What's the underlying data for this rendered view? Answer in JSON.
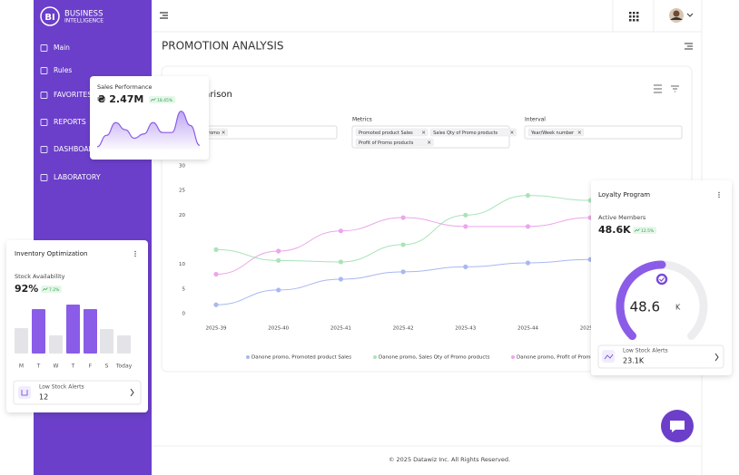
{
  "sidebar": {
    "logo": "BI",
    "brand_line1": "BUSINESS",
    "brand_line2": "INTELLIGENCE",
    "menu": [
      "Main",
      "Rules",
      "FAVORITES",
      "REPORTS",
      "DASHBOARD",
      "LABORATORY"
    ]
  },
  "page_title": "PROMOTION ANALYSIS",
  "comparison": {
    "title": "Comparison",
    "filters": [
      {
        "chips": [
          "Danone promo"
        ]
      },
      {
        "label": "Metrics",
        "chips": [
          "Promoted product Sales",
          "Sales Qty of Promo products",
          "Profit of Promo products"
        ]
      },
      {
        "label": "Interval",
        "chips": [
          "Year/Week number"
        ]
      }
    ]
  },
  "sales_card": {
    "title": "Sales Performance",
    "value": "₴ 2.47M",
    "badge": "18.45%"
  },
  "inventory_card": {
    "title": "Inventory Optimization",
    "subtitle": "Stock Availability",
    "value": "92%",
    "badge": "7.2%",
    "alert_label": "Low Stock Alerts",
    "alert_value": "12"
  },
  "loyalty_card": {
    "title": "Loyalty Program",
    "subtitle": "Active Members",
    "value": "48.6K",
    "badge": "12.5%",
    "gauge_value": "48.6",
    "gauge_unit": "K",
    "alert_label": "Low Stock Alerts",
    "alert_value": "23.1K"
  },
  "footer": "© 2025 Datawiz Inc. All Rights Reserved.",
  "chart_data": [
    {
      "type": "line",
      "categories": [
        "2025-39",
        "2025-40",
        "2025-41",
        "2025-42",
        "2025-43",
        "2025-44",
        "2025-45"
      ],
      "ylim": [
        0,
        30
      ],
      "yticks": [
        0,
        5,
        10,
        20,
        25,
        30
      ],
      "series": [
        {
          "name": "Danone promo, Promoted product Sales",
          "color": "#a9b8ee",
          "values": [
            1.8,
            4.8,
            7,
            8.5,
            9.5,
            10.3,
            11
          ]
        },
        {
          "name": "Danone promo, Sales Qty of Promo products",
          "color": "#a8e4b8",
          "values": [
            13,
            10.8,
            10.5,
            14,
            20,
            24,
            23
          ]
        },
        {
          "name": "Danone promo, Profit of Promo products",
          "color": "#eca6ea",
          "values": [
            8,
            12.7,
            16.8,
            19.5,
            17.7,
            17.7,
            19.5
          ]
        }
      ]
    },
    {
      "type": "bar",
      "categories": [
        "M",
        "T",
        "W",
        "T",
        "F",
        "S",
        "Today"
      ],
      "ylim": [
        0,
        60
      ],
      "values": [
        28,
        49,
        20,
        54,
        49,
        27,
        20
      ],
      "colors": [
        "#e4e4e8",
        "#8b5ce8",
        "#e4e4e8",
        "#8b5ce8",
        "#8b5ce8",
        "#e4e4e8",
        "#e4e4e8"
      ]
    },
    {
      "type": "area",
      "ylim": [
        0,
        30
      ],
      "color": "#8b5ce8",
      "values": [
        2,
        10,
        19,
        14,
        8,
        11,
        19,
        12,
        12,
        27,
        17,
        3
      ]
    }
  ]
}
